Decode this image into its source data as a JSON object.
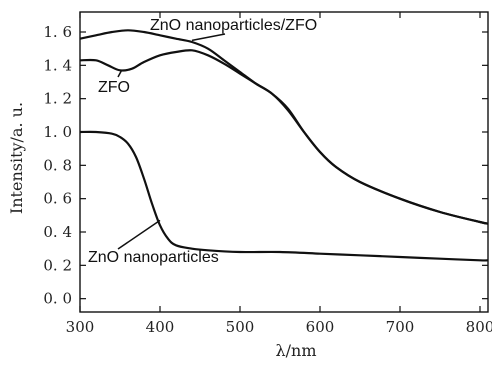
{
  "chart_data": {
    "type": "line",
    "xlabel": "λ/nm",
    "ylabel": "Intensity/a. u.",
    "xlim": [
      300,
      810
    ],
    "ylim": [
      -0.08,
      1.72
    ],
    "x_ticks": [
      300,
      400,
      500,
      600,
      700,
      800
    ],
    "y_ticks": [
      0.0,
      0.2,
      0.4,
      0.6,
      0.8,
      1.0,
      1.2,
      1.4,
      1.6
    ],
    "y_tick_labels": [
      "0. 0",
      "0. 2",
      "0. 4",
      "0. 6",
      "0. 8",
      "1. 0",
      "1. 2",
      "1. 4",
      "1. 6"
    ],
    "grid": false,
    "legend": "none",
    "series": [
      {
        "name": "ZnO nanoparticles/ZFO",
        "x": [
          300,
          320,
          340,
          360,
          380,
          400,
          420,
          440,
          460,
          480,
          500,
          520,
          540,
          560,
          580,
          600,
          620,
          650,
          700,
          750,
          800,
          810
        ],
        "values": [
          1.56,
          1.58,
          1.6,
          1.61,
          1.6,
          1.58,
          1.56,
          1.54,
          1.5,
          1.43,
          1.36,
          1.29,
          1.23,
          1.14,
          1.0,
          0.88,
          0.79,
          0.7,
          0.6,
          0.52,
          0.46,
          0.45
        ]
      },
      {
        "name": "ZFO",
        "x": [
          300,
          320,
          335,
          350,
          365,
          380,
          400,
          420,
          440,
          460,
          480,
          500,
          520,
          540,
          560,
          580,
          600,
          620,
          650,
          700,
          750,
          800,
          810
        ],
        "values": [
          1.43,
          1.43,
          1.4,
          1.37,
          1.38,
          1.42,
          1.46,
          1.48,
          1.49,
          1.46,
          1.41,
          1.35,
          1.29,
          1.23,
          1.13,
          1.0,
          0.88,
          0.79,
          0.7,
          0.6,
          0.52,
          0.46,
          0.45
        ]
      },
      {
        "name": "ZnO nanoparticles",
        "x": [
          300,
          320,
          340,
          350,
          360,
          370,
          380,
          390,
          400,
          410,
          420,
          440,
          460,
          500,
          550,
          600,
          650,
          700,
          750,
          800,
          810
        ],
        "values": [
          1.0,
          1.0,
          0.99,
          0.97,
          0.93,
          0.85,
          0.72,
          0.57,
          0.44,
          0.36,
          0.32,
          0.3,
          0.29,
          0.28,
          0.28,
          0.27,
          0.26,
          0.25,
          0.24,
          0.23,
          0.23
        ]
      }
    ],
    "annotations": [
      {
        "text": "ZnO nanoparticles/ZFO",
        "target_series": 0,
        "x": 440,
        "y": 1.55
      },
      {
        "text": "ZFO",
        "target_series": 1,
        "x": 352,
        "y": 1.37
      },
      {
        "text": "ZnO nanoparticles",
        "target_series": 2,
        "x": 400,
        "y": 0.47
      }
    ]
  }
}
